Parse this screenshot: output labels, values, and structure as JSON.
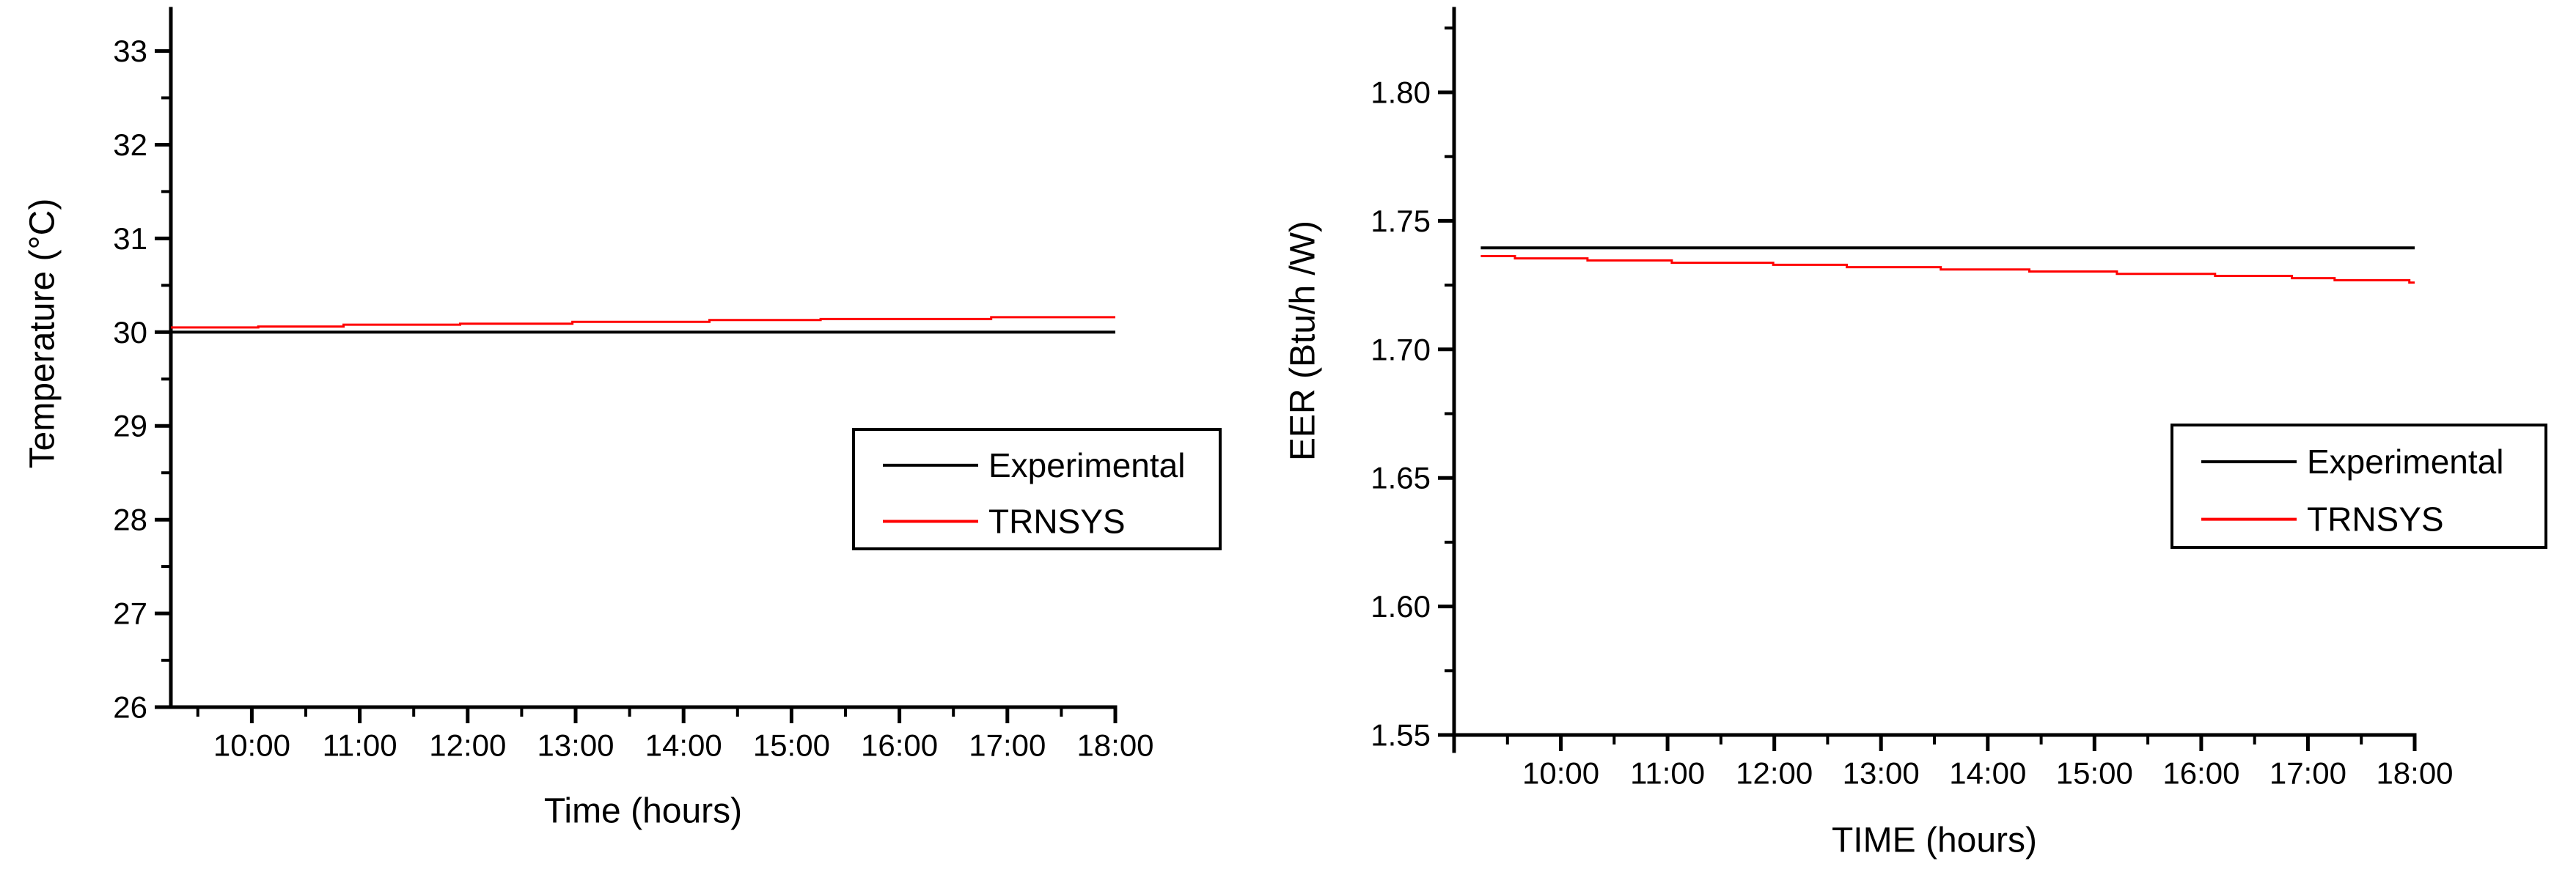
{
  "figure": {
    "background": "#ffffff"
  },
  "colors": {
    "axis": "#000000",
    "text": "#000000",
    "experimental": "#000000",
    "trnsys": "#ff0000"
  },
  "chart_data": [
    {
      "id": "temperature",
      "type": "line",
      "title": "",
      "xlabel": "Time (hours)",
      "ylabel": "Temperature (°C)",
      "xlim": [
        9.25,
        18
      ],
      "ylim": [
        26,
        33.45
      ],
      "x_minor_step": 0.5,
      "y_minor_step": 0.5,
      "grid": false,
      "x_ticks": [
        {
          "value": 10,
          "label": "10:00"
        },
        {
          "value": 11,
          "label": "11:00"
        },
        {
          "value": 12,
          "label": "12:00"
        },
        {
          "value": 13,
          "label": "13:00"
        },
        {
          "value": 14,
          "label": "14:00"
        },
        {
          "value": 15,
          "label": "15:00"
        },
        {
          "value": 16,
          "label": "16:00"
        },
        {
          "value": 17,
          "label": "17:00"
        },
        {
          "value": 18,
          "label": "18:00"
        }
      ],
      "y_ticks": [
        {
          "value": 26,
          "label": "26"
        },
        {
          "value": 27,
          "label": "27"
        },
        {
          "value": 28,
          "label": "28"
        },
        {
          "value": 29,
          "label": "29"
        },
        {
          "value": 30,
          "label": "30"
        },
        {
          "value": 31,
          "label": "31"
        },
        {
          "value": 32,
          "label": "32"
        },
        {
          "value": 33,
          "label": "33"
        }
      ],
      "legend": {
        "position": "inside-right-middle",
        "items": [
          "Experimental",
          "TRNSYS"
        ]
      },
      "series": [
        {
          "name": "Experimental",
          "color": "#000000",
          "line_width": 4,
          "interp": "linear",
          "points": [
            [
              9.25,
              30.0
            ],
            [
              18,
              30.0
            ]
          ]
        },
        {
          "name": "TRNSYS",
          "color": "#ff0000",
          "line_width": 3,
          "interp": "step-after",
          "points": [
            [
              9.25,
              30.05
            ],
            [
              10.06,
              30.06
            ],
            [
              10.85,
              30.08
            ],
            [
              11.93,
              30.09
            ],
            [
              12.97,
              30.11
            ],
            [
              14.24,
              30.13
            ],
            [
              15.27,
              30.14
            ],
            [
              16.85,
              30.16
            ],
            [
              18,
              30.16
            ]
          ]
        }
      ]
    },
    {
      "id": "eer",
      "type": "line",
      "title": "",
      "xlabel": "TIME (hours)",
      "ylabel": "EER (Btu/h /W)",
      "xlim": [
        9.0,
        18
      ],
      "ylim": [
        1.55,
        1.8325
      ],
      "x_minor_step": 0.5,
      "y_minor_step": 0.025,
      "grid": false,
      "x_ticks": [
        {
          "value": 10,
          "label": "10:00"
        },
        {
          "value": 11,
          "label": "11:00"
        },
        {
          "value": 12,
          "label": "12:00"
        },
        {
          "value": 13,
          "label": "13:00"
        },
        {
          "value": 14,
          "label": "14:00"
        },
        {
          "value": 15,
          "label": "15:00"
        },
        {
          "value": 16,
          "label": "16:00"
        },
        {
          "value": 17,
          "label": "17:00"
        },
        {
          "value": 18,
          "label": "18:00"
        }
      ],
      "y_ticks": [
        {
          "value": 1.55,
          "label": "1.55"
        },
        {
          "value": 1.6,
          "label": "1.60"
        },
        {
          "value": 1.65,
          "label": "1.65"
        },
        {
          "value": 1.7,
          "label": "1.70"
        },
        {
          "value": 1.75,
          "label": "1.75"
        },
        {
          "value": 1.8,
          "label": "1.80"
        }
      ],
      "legend": {
        "position": "inside-right-middle",
        "items": [
          "Experimental",
          "TRNSYS"
        ]
      },
      "series": [
        {
          "name": "Experimental",
          "color": "#000000",
          "line_width": 4,
          "interp": "linear",
          "points": [
            [
              9.25,
              1.7395
            ],
            [
              18,
              1.7395
            ]
          ]
        },
        {
          "name": "TRNSYS",
          "color": "#ff0000",
          "line_width": 3,
          "interp": "step-after",
          "points": [
            [
              9.25,
              1.7363
            ],
            [
              9.57,
              1.7354
            ],
            [
              10.25,
              1.7346
            ],
            [
              11.04,
              1.7337
            ],
            [
              11.99,
              1.7329
            ],
            [
              12.68,
              1.732
            ],
            [
              13.56,
              1.7311
            ],
            [
              14.39,
              1.7303
            ],
            [
              15.21,
              1.7294
            ],
            [
              16.13,
              1.7286
            ],
            [
              16.85,
              1.7277
            ],
            [
              17.25,
              1.7269
            ],
            [
              17.95,
              1.726
            ],
            [
              18,
              1.726
            ]
          ]
        }
      ]
    }
  ]
}
